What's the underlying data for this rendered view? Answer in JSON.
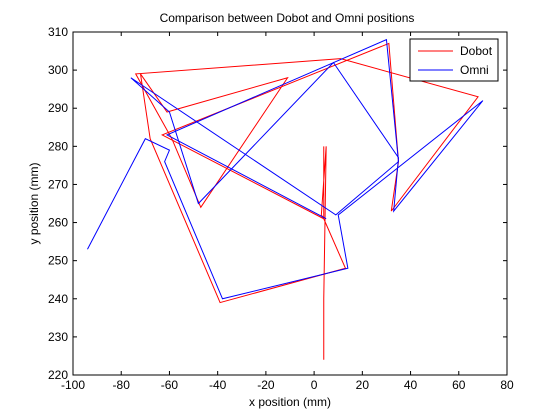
{
  "chart_data": {
    "type": "line",
    "title": "Comparison between Dobot and Omni positions",
    "xlabel": "x position (mm)",
    "ylabel": "y position (mm)",
    "xlim": [
      -100,
      80
    ],
    "ylim": [
      220,
      310
    ],
    "xticks": [
      -100,
      -80,
      -60,
      -40,
      -20,
      0,
      20,
      40,
      60,
      80
    ],
    "yticks": [
      220,
      230,
      240,
      250,
      260,
      270,
      280,
      290,
      300,
      310
    ],
    "xtick_labels": [
      "-100",
      "-80",
      "-60",
      "-40",
      "-20",
      "0",
      "20",
      "40",
      "60",
      "80"
    ],
    "ytick_labels": [
      "220",
      "230",
      "240",
      "250",
      "260",
      "270",
      "280",
      "290",
      "300",
      "310"
    ],
    "grid": false,
    "legend_position": "top-right",
    "series": [
      {
        "name": "Dobot",
        "color": "#ff0000",
        "x": [
          4,
          4,
          5,
          3,
          4,
          13,
          -39,
          -68,
          -72,
          -61,
          -11,
          -47,
          -59,
          -74,
          11,
          68,
          32,
          35,
          31,
          -63,
          4,
          4
        ],
        "y": [
          224,
          240,
          280,
          262,
          261,
          248,
          239,
          282,
          299,
          289,
          298,
          264,
          282,
          299,
          303,
          293,
          263,
          276,
          307,
          283,
          261,
          280
        ]
      },
      {
        "name": "Omni",
        "color": "#0000ff",
        "x": [
          -94,
          -70,
          -60,
          -62,
          -38,
          14,
          10,
          70,
          33,
          35,
          8,
          -48,
          -60,
          -76,
          9,
          35,
          30,
          -61,
          5
        ],
        "y": [
          253,
          282,
          279,
          276,
          240,
          248,
          262,
          292,
          263,
          277,
          302,
          265,
          289,
          298,
          262,
          276,
          308,
          283,
          261
        ]
      }
    ]
  }
}
